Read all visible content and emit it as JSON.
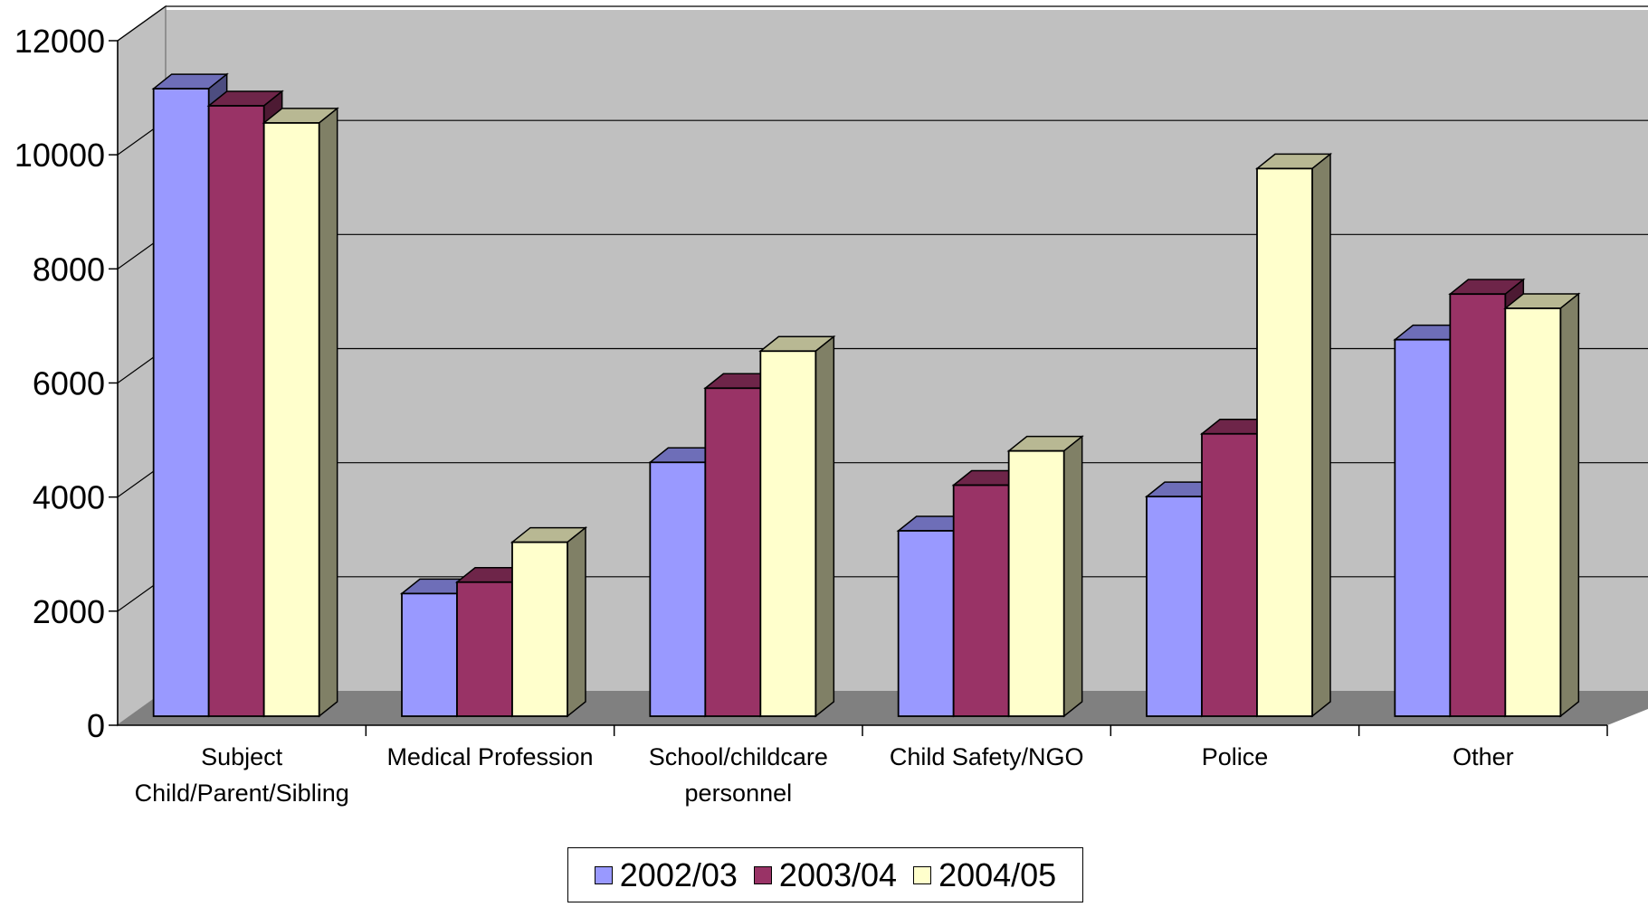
{
  "chart_data": {
    "type": "bar",
    "title": "",
    "xlabel": "",
    "ylabel": "",
    "ylim": [
      0,
      12000
    ],
    "yticks": [
      "0",
      "2000",
      "4000",
      "6000",
      "8000",
      "10000",
      "12000"
    ],
    "grid": true,
    "legend_position": "bottom",
    "categories": [
      [
        "Subject",
        "Child/Parent/Sibling"
      ],
      [
        "Medical Profession"
      ],
      [
        "School/childcare",
        "personnel"
      ],
      [
        "Child Safety/NGO"
      ],
      [
        "Police"
      ],
      [
        "Other"
      ]
    ],
    "series": [
      {
        "name": "2002/03",
        "color": "#9999FF",
        "values": [
          11000,
          2150,
          4450,
          3250,
          3850,
          6600
        ]
      },
      {
        "name": "2003/04",
        "color": "#993366",
        "values": [
          10700,
          2350,
          5750,
          4050,
          4950,
          7400
        ]
      },
      {
        "name": "2004/05",
        "color": "#FFFFCC",
        "values": [
          10400,
          3050,
          6400,
          4650,
          9600,
          7150
        ]
      }
    ]
  }
}
